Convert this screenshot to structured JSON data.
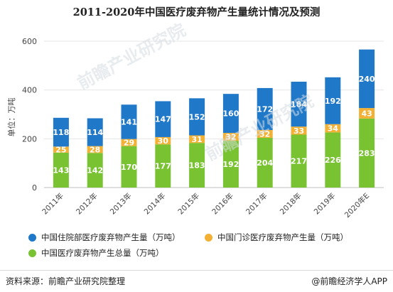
{
  "title": "2011-2020年中国医疗废弃物产生量统计情况及预测",
  "ylabel": "单位：万吨",
  "legend": {
    "inpatient": "中国住院部医疗废弃物产生量（万吨）",
    "outpatient": "中国门诊医疗废弃物产生量（万吨）",
    "total": "中国医疗废弃物产生总量（万吨）"
  },
  "colors": {
    "inpatient": "#1f78c8",
    "outpatient": "#f2b134",
    "total": "#79c332"
  },
  "footer": {
    "source": "资料来源：前瞻产业研究院整理",
    "brand": "@前瞻经济学人APP"
  },
  "watermark": {
    "text": "前瞻产业研究院"
  },
  "chart_data": {
    "type": "bar",
    "stacked": true,
    "categories": [
      "2011年",
      "2012年",
      "2013年",
      "2014年",
      "2015年",
      "2016年",
      "2017年",
      "2018年",
      "2019年",
      "2020年E"
    ],
    "series": [
      {
        "name": "中国医疗废弃物产生总量（万吨）",
        "key": "total",
        "values": [
          143,
          142,
          170,
          177,
          183,
          192,
          204,
          217,
          226,
          283
        ]
      },
      {
        "name": "中国门诊医疗废弃物产生量（万吨）",
        "key": "outpatient",
        "values": [
          25,
          28,
          29,
          30,
          31,
          32,
          32,
          33,
          34,
          43
        ]
      },
      {
        "name": "中国住院部医疗废弃物产生量（万吨）",
        "key": "inpatient",
        "values": [
          118,
          114,
          141,
          147,
          152,
          160,
          172,
          184,
          192,
          240
        ]
      }
    ],
    "ylim": [
      0,
      600
    ],
    "yticks": [
      0,
      200,
      400,
      600
    ],
    "grid": true,
    "legend_position": "bottom"
  }
}
